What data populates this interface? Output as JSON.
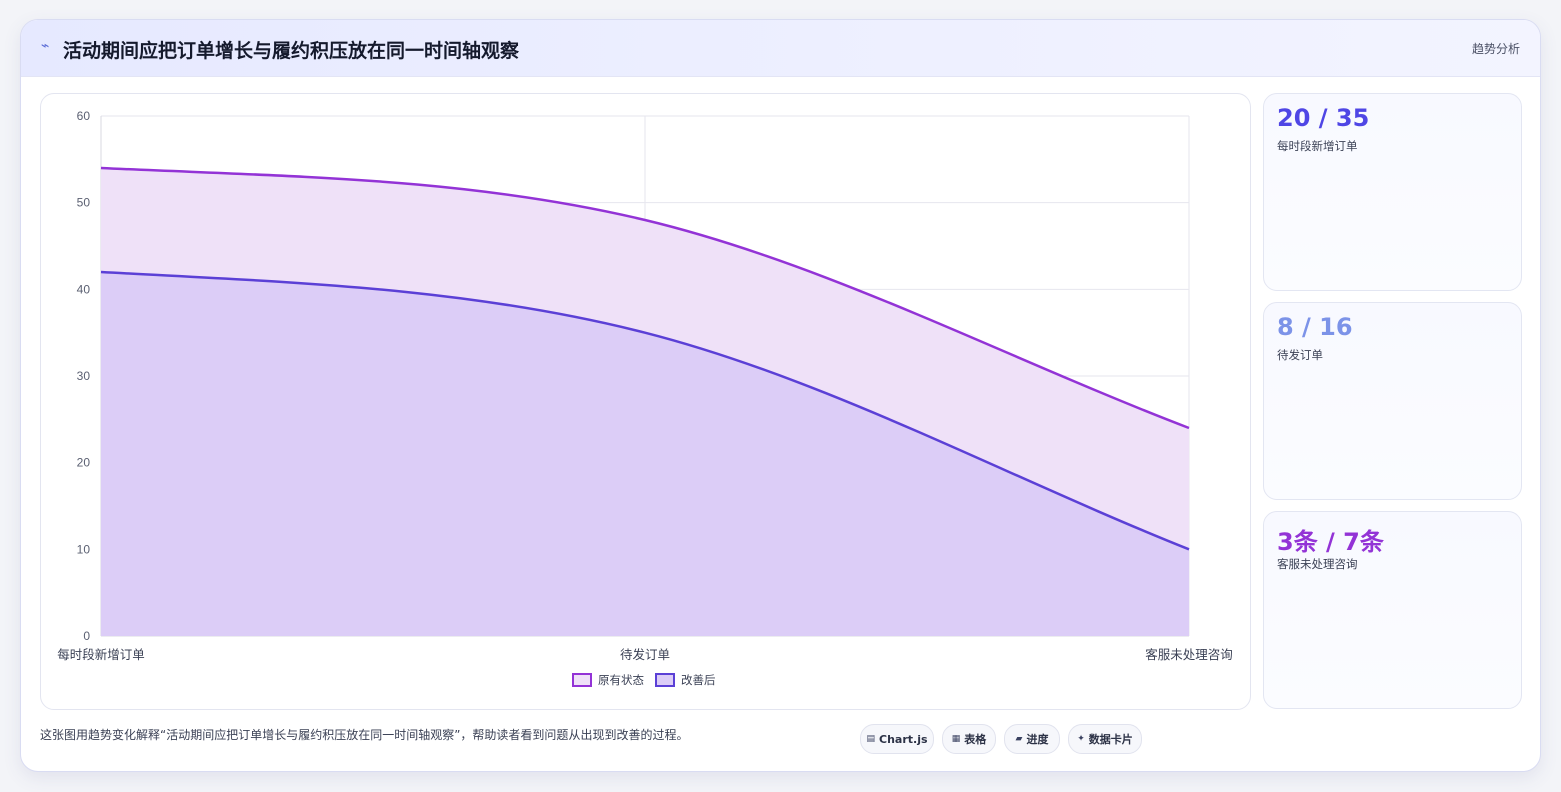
{
  "header": {
    "icon": "trend-line-icon",
    "title": "活动期间应把订单增长与履约积压放在同一时间轴观察",
    "tag": "趋势分析"
  },
  "chart_data": {
    "type": "area",
    "categories": [
      "每时段新增订单",
      "待发订单",
      "客服未处理咨询"
    ],
    "series": [
      {
        "name": "原有状态",
        "values": [
          54,
          48,
          24
        ],
        "color": "#9333d6",
        "fill": "#efe1f8"
      },
      {
        "name": "改善后",
        "values": [
          42,
          35,
          10
        ],
        "color": "#5b40d6",
        "fill": "#dccdf7"
      }
    ],
    "ylim": [
      0,
      60
    ],
    "yticks": [
      0,
      10,
      20,
      30,
      40,
      50,
      60
    ],
    "grid": true,
    "legend": "bottom"
  },
  "kpis": [
    {
      "value": "20 / 35",
      "label": "每时段新增订单",
      "color": "#4f46e5"
    },
    {
      "value": "8 / 16",
      "label": "待发订单",
      "color": "#7c93e8"
    },
    {
      "value": "3条 / 7条",
      "label": "客服未处理咨询",
      "color": "#9333d6"
    }
  ],
  "footer": {
    "description": "这张图用趋势变化解释“活动期间应把订单增长与履约积压放在同一时间轴观察”，帮助读者看到问题从出现到改善的过程。",
    "pills": [
      {
        "icon": "chart-icon",
        "glyph": "▤",
        "label": "Chart.js"
      },
      {
        "icon": "table-icon",
        "glyph": "▦",
        "label": "表格"
      },
      {
        "icon": "progress-icon",
        "glyph": "▰",
        "label": "进度"
      },
      {
        "icon": "data-card-icon",
        "glyph": "✦",
        "label": "数据卡片"
      }
    ]
  }
}
